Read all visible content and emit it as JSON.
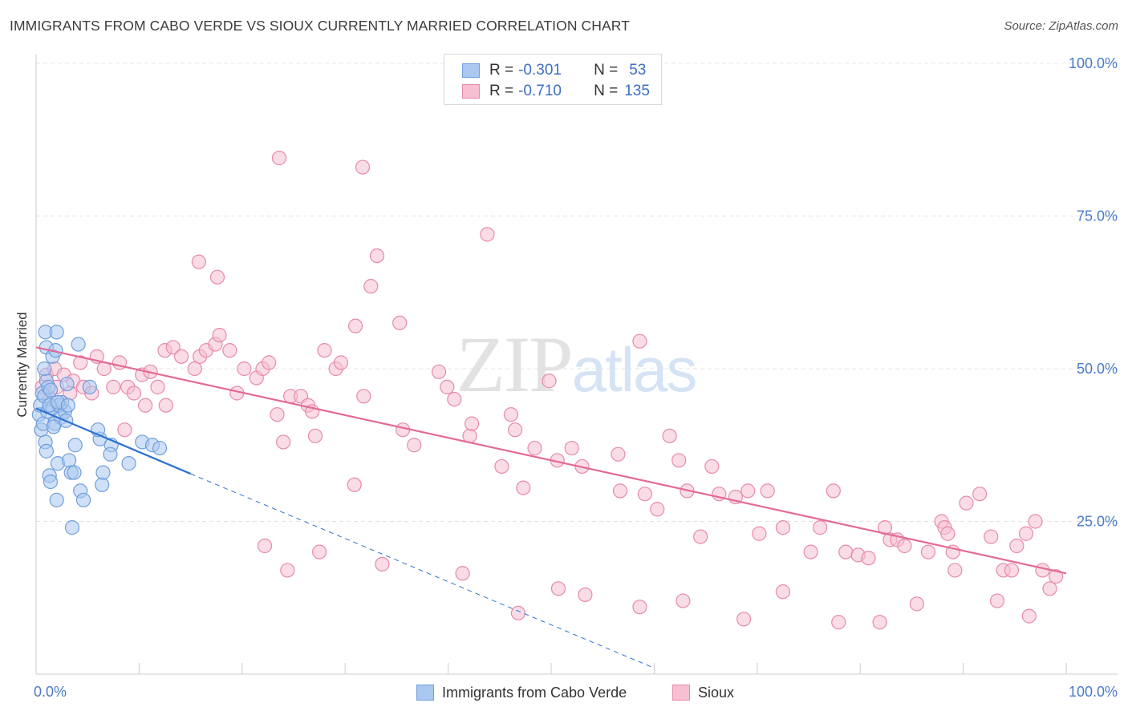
{
  "header": {
    "title": "IMMIGRANTS FROM CABO VERDE VS SIOUX CURRENTLY MARRIED CORRELATION CHART",
    "source": "Source: ZipAtlas.com"
  },
  "watermark": "ZIPatlas",
  "legend": {
    "r_label": "R =",
    "n_label": "N =",
    "rows": [
      {
        "r": "-0.301",
        "n": "53"
      },
      {
        "r": "-0.710",
        "n": "135"
      }
    ]
  },
  "bottom_legend": {
    "series1": "Immigrants from Cabo Verde",
    "series2": "Sioux"
  },
  "colors": {
    "blue_fill": "#aac8f0",
    "blue_stroke": "#6f9fdc",
    "blue_line": "#2f72d0",
    "pink_fill": "#f6bfd2",
    "pink_stroke": "#e78aaa",
    "pink_line": "#e36a95",
    "tick_text": "#4a7bc8",
    "grid": "#e4e4e4"
  },
  "chart_data": {
    "type": "scatter",
    "title": "IMMIGRANTS FROM CABO VERDE VS SIOUX CURRENTLY MARRIED CORRELATION CHART",
    "xlabel": "",
    "ylabel": "Currently Married",
    "xlim": [
      0,
      100
    ],
    "ylim": [
      0,
      100
    ],
    "x_tick_labels": [
      {
        "value": 0,
        "label": "0.0%"
      },
      {
        "value": 100,
        "label": "100.0%"
      }
    ],
    "y_tick_labels": [
      {
        "value": 100,
        "label": "100.0%"
      },
      {
        "value": 75,
        "label": "75.0%"
      },
      {
        "value": 50,
        "label": "50.0%"
      },
      {
        "value": 25,
        "label": "25.0%"
      }
    ],
    "grid": true,
    "series": [
      {
        "name": "Immigrants from Cabo Verde",
        "R": -0.301,
        "N": 53,
        "trendline": {
          "x0": 0,
          "y0": 43.5,
          "x1": 15,
          "y1": 32.8,
          "dashed_to_x": 60,
          "dashed_to_y": 1
        },
        "points": [
          [
            0.3,
            42.5
          ],
          [
            0.4,
            44
          ],
          [
            0.5,
            40
          ],
          [
            0.6,
            46
          ],
          [
            0.7,
            41
          ],
          [
            0.8,
            45.5
          ],
          [
            0.9,
            38
          ],
          [
            1.0,
            48
          ],
          [
            1.1,
            43
          ],
          [
            1.2,
            47
          ],
          [
            0.9,
            56
          ],
          [
            1.0,
            53.5
          ],
          [
            1.6,
            52
          ],
          [
            1.9,
            53
          ],
          [
            2.0,
            56
          ],
          [
            0.8,
            50
          ],
          [
            1.4,
            46.5
          ],
          [
            1.6,
            43.5
          ],
          [
            1.8,
            41
          ],
          [
            2.2,
            44
          ],
          [
            2.4,
            42
          ],
          [
            2.8,
            43
          ],
          [
            2.9,
            41.5
          ],
          [
            2.5,
            44.5
          ],
          [
            3.0,
            47.5
          ],
          [
            1.3,
            44
          ],
          [
            1.7,
            40.5
          ],
          [
            2.1,
            44.5
          ],
          [
            3.1,
            44
          ],
          [
            4.1,
            54
          ],
          [
            3.8,
            37.5
          ],
          [
            4.3,
            30
          ],
          [
            1.0,
            36.5
          ],
          [
            2.1,
            34.5
          ],
          [
            3.2,
            35
          ],
          [
            1.3,
            32.5
          ],
          [
            1.4,
            31.5
          ],
          [
            2.0,
            28.5
          ],
          [
            3.4,
            33
          ],
          [
            3.7,
            33
          ],
          [
            4.6,
            28.5
          ],
          [
            3.5,
            24
          ],
          [
            6.4,
            31
          ],
          [
            6.5,
            33
          ],
          [
            6.2,
            38.5
          ],
          [
            7.3,
            37.5
          ],
          [
            7.2,
            36
          ],
          [
            9.0,
            34.5
          ],
          [
            10.3,
            38
          ],
          [
            11.3,
            37.5
          ],
          [
            12.0,
            37
          ],
          [
            5.2,
            47
          ],
          [
            6.0,
            40
          ]
        ]
      },
      {
        "name": "Sioux",
        "R": -0.71,
        "N": 135,
        "trendline": {
          "x0": 0,
          "y0": 53.5,
          "x1": 100,
          "y1": 16.5
        },
        "points": [
          [
            0.6,
            47
          ],
          [
            1.0,
            49
          ],
          [
            1.3,
            45
          ],
          [
            1.8,
            50
          ],
          [
            2.0,
            47
          ],
          [
            2.3,
            44
          ],
          [
            2.7,
            49
          ],
          [
            3.3,
            46
          ],
          [
            3.6,
            48
          ],
          [
            4.3,
            51
          ],
          [
            4.6,
            47
          ],
          [
            5.4,
            46
          ],
          [
            5.9,
            52
          ],
          [
            6.6,
            50
          ],
          [
            7.5,
            47
          ],
          [
            8.1,
            51
          ],
          [
            8.6,
            40
          ],
          [
            8.9,
            47
          ],
          [
            9.5,
            46
          ],
          [
            10.3,
            49
          ],
          [
            10.6,
            44
          ],
          [
            11.1,
            49.5
          ],
          [
            11.8,
            47
          ],
          [
            12.6,
            44
          ],
          [
            12.5,
            53
          ],
          [
            13.3,
            53.5
          ],
          [
            14.1,
            52
          ],
          [
            15.4,
            50
          ],
          [
            15.9,
            52
          ],
          [
            16.5,
            53
          ],
          [
            17.4,
            54
          ],
          [
            17.8,
            55.5
          ],
          [
            18.8,
            53
          ],
          [
            19.5,
            46
          ],
          [
            20.2,
            50
          ],
          [
            21.4,
            48.5
          ],
          [
            22.0,
            50
          ],
          [
            22.6,
            51
          ],
          [
            23.4,
            42.5
          ],
          [
            24.0,
            38
          ],
          [
            24.7,
            45.5
          ],
          [
            25.7,
            45.5
          ],
          [
            26.4,
            44
          ],
          [
            26.8,
            43
          ],
          [
            27.1,
            39
          ],
          [
            28.0,
            53
          ],
          [
            29.1,
            50
          ],
          [
            29.6,
            51
          ],
          [
            30.9,
            31
          ],
          [
            31.0,
            57
          ],
          [
            31.8,
            45.5
          ],
          [
            32.5,
            63.5
          ],
          [
            33.1,
            68.5
          ],
          [
            35.3,
            57.5
          ],
          [
            35.6,
            40
          ],
          [
            36.7,
            37.5
          ],
          [
            39.1,
            49.5
          ],
          [
            39.9,
            47
          ],
          [
            40.6,
            45
          ],
          [
            42.1,
            39
          ],
          [
            42.3,
            41
          ],
          [
            43.8,
            72
          ],
          [
            45.2,
            34
          ],
          [
            46.1,
            42.5
          ],
          [
            46.5,
            40
          ],
          [
            47.3,
            30.5
          ],
          [
            48.4,
            37
          ],
          [
            49.8,
            48
          ],
          [
            50.6,
            35
          ],
          [
            52.0,
            37
          ],
          [
            53.0,
            34
          ],
          [
            56.5,
            36
          ],
          [
            56.7,
            30
          ],
          [
            59.1,
            29.5
          ],
          [
            60.3,
            27
          ],
          [
            61.5,
            39
          ],
          [
            62.4,
            35
          ],
          [
            63.2,
            30
          ],
          [
            64.5,
            22.5
          ],
          [
            65.6,
            34
          ],
          [
            66.3,
            29.5
          ],
          [
            67.9,
            29
          ],
          [
            69.1,
            30
          ],
          [
            70.2,
            23
          ],
          [
            71.0,
            30
          ],
          [
            72.5,
            24
          ],
          [
            75.2,
            20
          ],
          [
            76.1,
            24
          ],
          [
            77.4,
            30
          ],
          [
            78.6,
            20
          ],
          [
            79.8,
            19.5
          ],
          [
            80.8,
            19
          ],
          [
            82.4,
            24
          ],
          [
            82.9,
            22
          ],
          [
            83.6,
            22
          ],
          [
            84.3,
            21
          ],
          [
            86.6,
            20
          ],
          [
            87.9,
            25
          ],
          [
            88.2,
            24
          ],
          [
            88.5,
            23
          ],
          [
            89.0,
            20
          ],
          [
            89.2,
            17
          ],
          [
            90.3,
            28
          ],
          [
            91.6,
            29.5
          ],
          [
            92.7,
            22.5
          ],
          [
            93.9,
            17
          ],
          [
            94.7,
            17
          ],
          [
            95.2,
            21
          ],
          [
            96.1,
            23
          ],
          [
            97.0,
            25
          ],
          [
            97.7,
            17
          ],
          [
            98.4,
            14
          ],
          [
            99.0,
            16
          ],
          [
            96.4,
            9.5
          ],
          [
            93.3,
            12
          ],
          [
            85.5,
            11.5
          ],
          [
            81.9,
            8.5
          ],
          [
            77.9,
            8.5
          ],
          [
            72.5,
            13.5
          ],
          [
            68.7,
            9
          ],
          [
            62.8,
            12
          ],
          [
            58.6,
            11
          ],
          [
            53.3,
            13
          ],
          [
            50.7,
            14
          ],
          [
            46.8,
            10
          ],
          [
            41.4,
            16.5
          ],
          [
            33.6,
            18
          ],
          [
            27.5,
            20
          ],
          [
            24.4,
            17
          ],
          [
            22.2,
            21
          ],
          [
            17.6,
            65
          ],
          [
            15.8,
            67.5
          ],
          [
            23.6,
            84.5
          ],
          [
            31.7,
            83
          ],
          [
            58.6,
            54.5
          ]
        ]
      }
    ]
  }
}
